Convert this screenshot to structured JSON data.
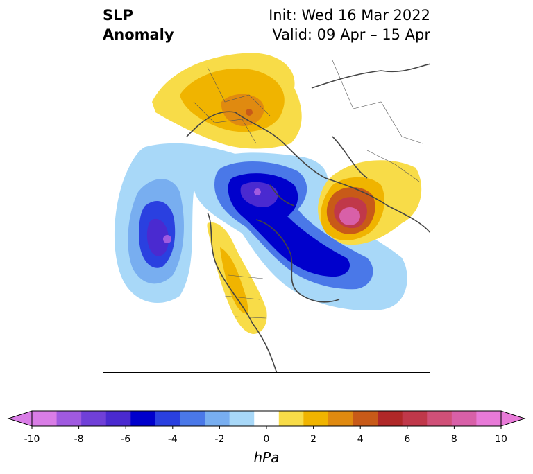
{
  "header": {
    "title_line1": "SLP",
    "title_line2": "Anomaly",
    "init_text": "Init: Wed 16 Mar 2022",
    "valid_text": "Valid: 09 Apr – 15 Apr"
  },
  "colorbar": {
    "unit": "hPa",
    "ticks": [
      "-10",
      "-8",
      "-6",
      "-4",
      "-2",
      "0",
      "2",
      "4",
      "6",
      "8",
      "10"
    ],
    "colors": [
      "#d97de6",
      "#a05ae0",
      "#7040d8",
      "#4a2ad0",
      "#0000cc",
      "#2a40e0",
      "#4a78e8",
      "#78aef0",
      "#a8d8f8",
      "#ffffff",
      "#f8dc48",
      "#f0b400",
      "#e08a10",
      "#c85a18",
      "#b02828",
      "#c0384a",
      "#d05078",
      "#d860a8",
      "#e87ad8"
    ],
    "extend_low": "#d97de6",
    "extend_high": "#e87ad8"
  }
}
